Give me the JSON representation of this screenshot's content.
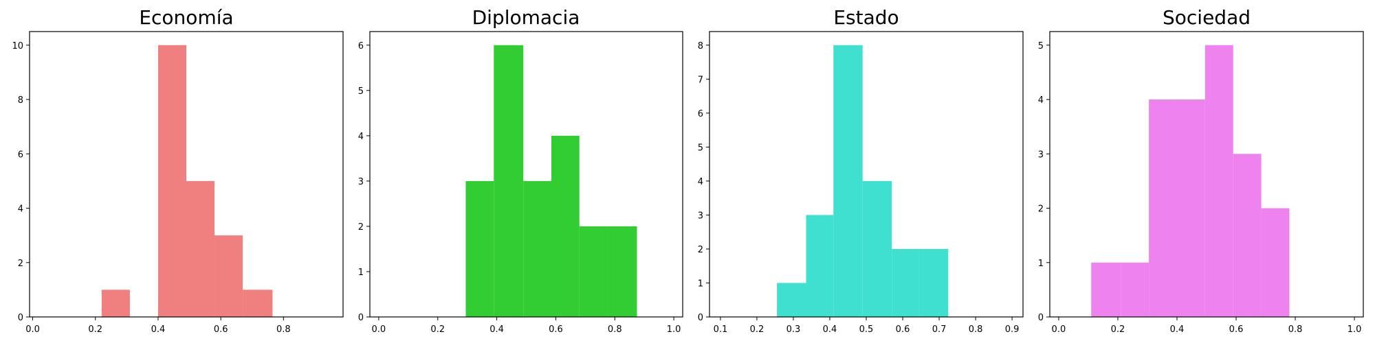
{
  "chart_data": [
    {
      "type": "bar",
      "title": "Economía",
      "color": "#f08080",
      "xlim": [
        -0.01,
        0.99
      ],
      "ylim": [
        0,
        10.5
      ],
      "xticks": [
        "0.0",
        "0.2",
        "0.4",
        "0.6",
        "0.8"
      ],
      "yticks": [
        "0",
        "2",
        "4",
        "6",
        "8",
        "10"
      ],
      "bins": [
        {
          "x0": 0.22,
          "x1": 0.31,
          "count": 1
        },
        {
          "x0": 0.4,
          "x1": 0.49,
          "count": 10
        },
        {
          "x0": 0.49,
          "x1": 0.58,
          "count": 5
        },
        {
          "x0": 0.58,
          "x1": 0.67,
          "count": 3
        },
        {
          "x0": 0.67,
          "x1": 0.765,
          "count": 1
        }
      ]
    },
    {
      "type": "bar",
      "title": "Diplomacia",
      "color": "#32cd32",
      "xlim": [
        -0.03,
        1.03
      ],
      "ylim": [
        0,
        6.3
      ],
      "xticks": [
        "0.0",
        "0.2",
        "0.4",
        "0.6",
        "0.8",
        "1.0"
      ],
      "yticks": [
        "0",
        "1",
        "2",
        "3",
        "4",
        "5",
        "6"
      ],
      "bins": [
        {
          "x0": 0.295,
          "x1": 0.39,
          "count": 3
        },
        {
          "x0": 0.39,
          "x1": 0.49,
          "count": 6
        },
        {
          "x0": 0.49,
          "x1": 0.585,
          "count": 3
        },
        {
          "x0": 0.585,
          "x1": 0.68,
          "count": 4
        },
        {
          "x0": 0.68,
          "x1": 0.775,
          "count": 2
        },
        {
          "x0": 0.775,
          "x1": 0.875,
          "count": 2
        }
      ]
    },
    {
      "type": "bar",
      "title": "Estado",
      "color": "#40e0d0",
      "xlim": [
        0.07,
        0.93
      ],
      "ylim": [
        0,
        8.4
      ],
      "xticks": [
        "0.1",
        "0.2",
        "0.3",
        "0.4",
        "0.5",
        "0.6",
        "0.7",
        "0.8",
        "0.9"
      ],
      "yticks": [
        "0",
        "1",
        "2",
        "3",
        "4",
        "5",
        "6",
        "7",
        "8"
      ],
      "bins": [
        {
          "x0": 0.255,
          "x1": 0.335,
          "count": 1
        },
        {
          "x0": 0.335,
          "x1": 0.41,
          "count": 3
        },
        {
          "x0": 0.41,
          "x1": 0.49,
          "count": 8
        },
        {
          "x0": 0.49,
          "x1": 0.57,
          "count": 4
        },
        {
          "x0": 0.57,
          "x1": 0.645,
          "count": 2
        },
        {
          "x0": 0.645,
          "x1": 0.725,
          "count": 2
        }
      ]
    },
    {
      "type": "bar",
      "title": "Sociedad",
      "color": "#ee82ee",
      "xlim": [
        -0.03,
        1.03
      ],
      "ylim": [
        0,
        5.25
      ],
      "xticks": [
        "0.0",
        "0.2",
        "0.4",
        "0.6",
        "0.8",
        "1.0"
      ],
      "yticks": [
        "0",
        "1",
        "2",
        "3",
        "4",
        "5"
      ],
      "bins": [
        {
          "x0": 0.11,
          "x1": 0.21,
          "count": 1
        },
        {
          "x0": 0.21,
          "x1": 0.305,
          "count": 1
        },
        {
          "x0": 0.305,
          "x1": 0.4,
          "count": 4
        },
        {
          "x0": 0.4,
          "x1": 0.495,
          "count": 4
        },
        {
          "x0": 0.495,
          "x1": 0.59,
          "count": 5
        },
        {
          "x0": 0.59,
          "x1": 0.685,
          "count": 3
        },
        {
          "x0": 0.685,
          "x1": 0.78,
          "count": 2
        }
      ]
    }
  ]
}
